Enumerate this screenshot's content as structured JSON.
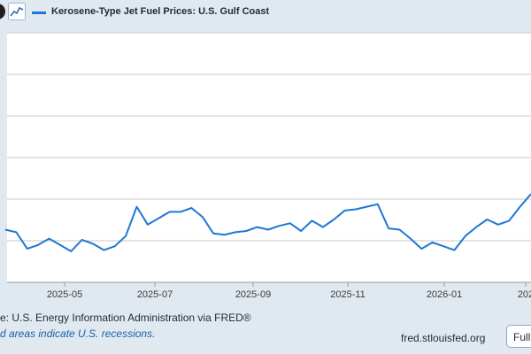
{
  "header": {
    "logo_icon": "fred-logo-icon",
    "chart_icon": "line-chart-icon",
    "legend_label": "Kerosene-Type Jet Fuel Prices: U.S. Gulf Coast",
    "series_color": "#1f77d4"
  },
  "footer": {
    "source": "e: U.S. Energy Information Administration via FRED®",
    "recession_note": "d areas indicate U.S. recessions.",
    "url": "fred.stlouisfed.org",
    "fullscreen_label": "Full"
  },
  "chart_data": {
    "type": "line",
    "x_tick_labels": [
      "2025-05",
      "2025-07",
      "2025-09",
      "2025-11",
      "2026-01",
      "202"
    ],
    "series": [
      {
        "name": "Kerosene-Type Jet Fuel Prices: U.S. Gulf Coast",
        "values": [
          2.17,
          2.15,
          2.02,
          2.05,
          2.1,
          2.05,
          2.0,
          2.09,
          2.06,
          2.01,
          2.04,
          2.12,
          2.35,
          2.21,
          2.26,
          2.31,
          2.31,
          2.34,
          2.27,
          2.14,
          2.13,
          2.15,
          2.16,
          2.19,
          2.17,
          2.2,
          2.22,
          2.16,
          2.24,
          2.19,
          2.25,
          2.32,
          2.33,
          2.35,
          2.37,
          2.18,
          2.17,
          2.1,
          2.02,
          2.07,
          2.04,
          2.01,
          2.12,
          2.19,
          2.25,
          2.21,
          2.24,
          2.35,
          2.45
        ]
      }
    ],
    "grid": true,
    "legend": "top-left"
  }
}
